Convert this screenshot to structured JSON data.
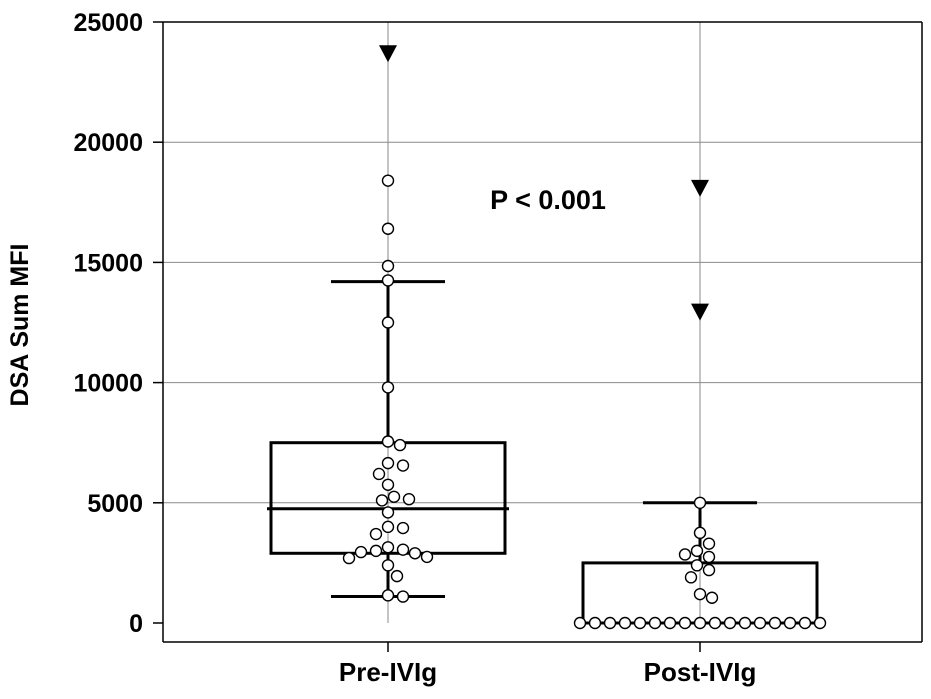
{
  "chart_data": {
    "type": "box",
    "title": "",
    "ylabel": "DSA Sum MFI",
    "xlabel": "",
    "ylim": [
      0,
      25000
    ],
    "yticks": [
      0,
      5000,
      10000,
      15000,
      20000,
      25000
    ],
    "ytick_labels": [
      "0",
      "5000",
      "10000",
      "15000",
      "20000",
      "25000"
    ],
    "grid": true,
    "annotation": "P < 0.001",
    "categories": [
      "Pre-IVIg",
      "Post-IVIg"
    ],
    "groups": [
      {
        "category": "Pre-IVIg",
        "q1": 2900,
        "median": 4750,
        "q3": 7500,
        "whisker_low": 1100,
        "whisker_high": 14200,
        "outliers_far": [
          23700
        ],
        "points": [
          18400,
          16400,
          14850,
          14250,
          12500,
          9800,
          7550,
          7400,
          6650,
          6550,
          6200,
          5750,
          5250,
          5100,
          5150,
          4600,
          4000,
          3950,
          3700,
          3150,
          3050,
          3000,
          2950,
          2900,
          2750,
          2700,
          2400,
          1950,
          1150,
          1100
        ]
      },
      {
        "category": "Post-IVIg",
        "q1": 0,
        "median": 0,
        "q3": 2500,
        "whisker_low": 0,
        "whisker_high": 5000,
        "outliers_far": [
          18100,
          12950
        ],
        "points": [
          5000,
          3750,
          3300,
          3000,
          2750,
          2850,
          2400,
          2200,
          1900,
          1200,
          1050,
          0,
          0,
          0,
          0,
          0,
          0,
          0,
          0,
          0,
          0,
          0,
          0,
          0,
          0,
          0,
          0,
          0
        ]
      }
    ]
  }
}
